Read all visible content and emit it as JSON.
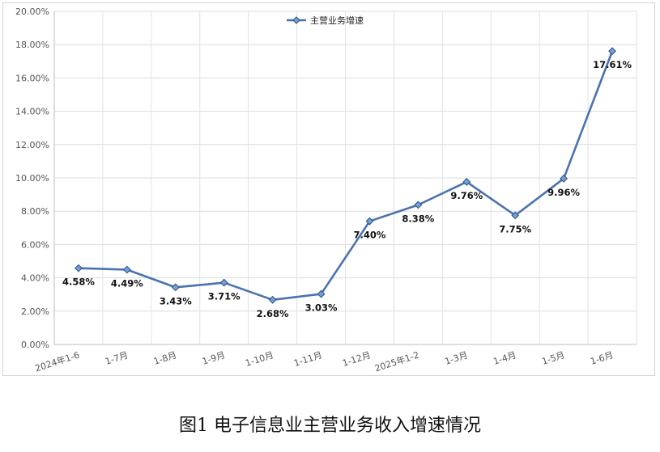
{
  "chart_data": {
    "type": "line",
    "title": "",
    "xlabel": "",
    "ylabel": "",
    "ylim": [
      0,
      20
    ],
    "y_tick_step": 2,
    "y_tick_format": "percent_2dp",
    "grid": true,
    "legend_position": "top-center",
    "categories": [
      "2024年1-6",
      "1-7月",
      "1-8月",
      "1-9月",
      "1-10月",
      "1-11月",
      "1-12月",
      "2025年1-2",
      "1-3月",
      "1-4月",
      "1-5月",
      "1-6月"
    ],
    "series": [
      {
        "name": "主营业务增速",
        "color": "#4a72b0",
        "marker_fill": "#6fa0d8",
        "values": [
          4.58,
          4.49,
          3.43,
          3.71,
          2.68,
          3.03,
          7.4,
          8.38,
          9.76,
          7.75,
          9.96,
          17.61
        ],
        "data_labels": [
          "4.58%",
          "4.49%",
          "3.43%",
          "3.71%",
          "2.68%",
          "3.03%",
          "7.40%",
          "8.38%",
          "9.76%",
          "7.75%",
          "9.96%",
          "17.61%"
        ]
      }
    ]
  },
  "caption": "图1  电子信息业主营业务收入增速情况"
}
